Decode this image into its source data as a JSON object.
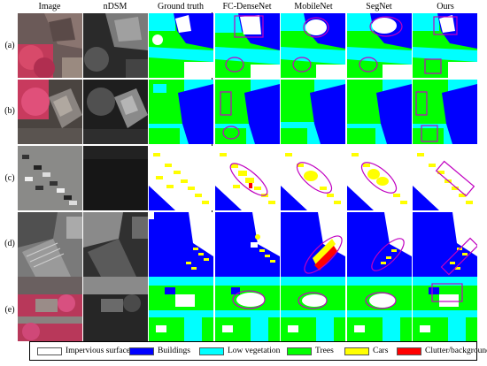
{
  "columns": [
    "Image",
    "nDSM",
    "Ground truth",
    "FC-DenseNet",
    "MobileNet",
    "SegNet",
    "Ours"
  ],
  "rows": [
    "(a)",
    "(b)",
    "(c)",
    "(d)",
    "(e)"
  ],
  "legend": [
    {
      "label": "Impervious surfaces",
      "color": "#ffffff"
    },
    {
      "label": "Buildings",
      "color": "#0000ff"
    },
    {
      "label": "Low vegetation",
      "color": "#00ffff"
    },
    {
      "label": "Trees",
      "color": "#00ff00"
    },
    {
      "label": "Cars",
      "color": "#ffff00"
    },
    {
      "label": "Clutter/background",
      "color": "#ff0000"
    }
  ],
  "highlight_color": "#c000c0"
}
